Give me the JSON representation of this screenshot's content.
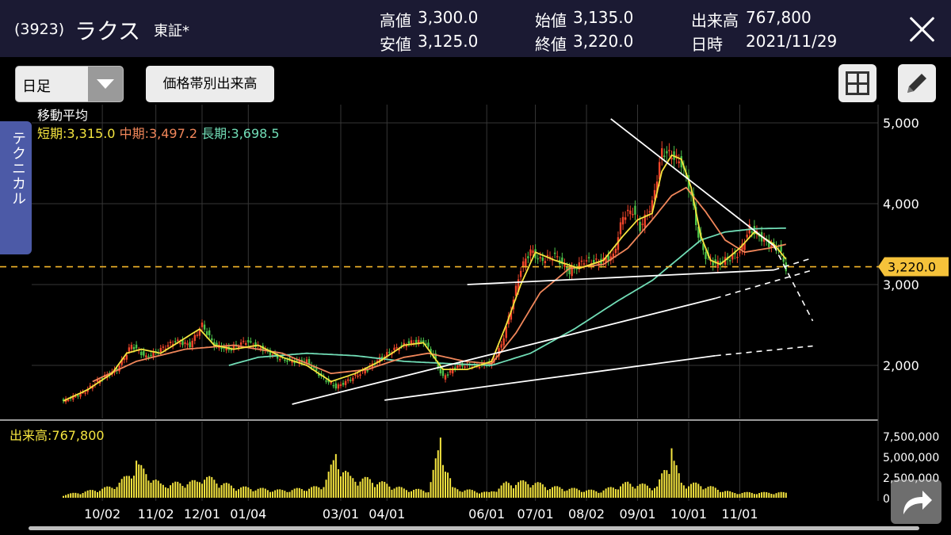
{
  "header": {
    "code": "(3923)",
    "name": "ラクス",
    "market": "東証*",
    "stats": [
      {
        "label": "高値",
        "value": "3,300.0"
      },
      {
        "label": "安値",
        "value": "3,125.0"
      },
      {
        "label": "始値",
        "value": "3,135.0"
      },
      {
        "label": "終値",
        "value": "3,220.0"
      },
      {
        "label": "出来高",
        "value": "767,800"
      },
      {
        "label": "日時",
        "value": "2021/11/29"
      }
    ]
  },
  "toolbar": {
    "period": "日足",
    "volume_by_price": "価格帯別出来高"
  },
  "side_tab": "テクニカル",
  "moving_average": {
    "title": "移動平均",
    "short": "短期:3,315.0",
    "mid": "中期:3,497.2",
    "long": "長期:3,698.5"
  },
  "volume_label": "出来高:767,800",
  "colors": {
    "header_bg": "#1b1a33",
    "candle_up": "#f0452a",
    "candle_down": "#4cc24a",
    "ma_short": "#f5e53f",
    "ma_mid": "#f0865a",
    "ma_long": "#71ddb6",
    "price_line": "#f5b72b",
    "volume": "#f5e53f",
    "trendline": "#ffffff"
  },
  "icons": {
    "close": "close-icon",
    "period_dropdown": "chevron-down-icon",
    "layout": "grid-icon",
    "draw": "pencil-icon",
    "share": "share-icon"
  },
  "chart_data": {
    "type": "candlestick",
    "current_price_label": "3,220.0",
    "current_price": 3220,
    "y_ticks": [
      5000,
      4000,
      3000,
      2000
    ],
    "y_tick_labels": [
      "5,000",
      "4,000",
      "3,000",
      "2,000"
    ],
    "ylim": [
      1500,
      5100
    ],
    "x_tick_labels": [
      "10/02",
      "11/02",
      "12/01",
      "01/04",
      "03/01",
      "04/01",
      "06/01",
      "07/01",
      "08/02",
      "09/01",
      "10/01",
      "11/01"
    ],
    "x_tick_index": [
      16,
      38,
      57,
      76,
      114,
      133,
      174,
      194,
      215,
      236,
      257,
      278
    ],
    "volume_ticks": [
      7500000,
      5000000,
      2500000,
      0
    ],
    "volume_tick_labels": [
      "7,500,000",
      "5,000,000",
      "2,500,000",
      "0"
    ],
    "volume_max": 8000000,
    "close_anchors": [
      [
        0,
        1560
      ],
      [
        8,
        1660
      ],
      [
        16,
        1850
      ],
      [
        22,
        1950
      ],
      [
        28,
        2250
      ],
      [
        34,
        2100
      ],
      [
        40,
        2200
      ],
      [
        46,
        2300
      ],
      [
        52,
        2250
      ],
      [
        57,
        2500
      ],
      [
        62,
        2250
      ],
      [
        68,
        2200
      ],
      [
        75,
        2300
      ],
      [
        82,
        2200
      ],
      [
        88,
        2100
      ],
      [
        94,
        2050
      ],
      [
        100,
        2050
      ],
      [
        106,
        1860
      ],
      [
        112,
        1730
      ],
      [
        118,
        1830
      ],
      [
        124,
        1940
      ],
      [
        130,
        2080
      ],
      [
        136,
        2200
      ],
      [
        142,
        2280
      ],
      [
        148,
        2300
      ],
      [
        152,
        2120
      ],
      [
        156,
        1850
      ],
      [
        162,
        2000
      ],
      [
        170,
        2000
      ],
      [
        176,
        2030
      ],
      [
        180,
        2250
      ],
      [
        184,
        2700
      ],
      [
        188,
        3200
      ],
      [
        192,
        3420
      ],
      [
        196,
        3300
      ],
      [
        202,
        3360
      ],
      [
        208,
        3150
      ],
      [
        214,
        3300
      ],
      [
        220,
        3280
      ],
      [
        226,
        3350
      ],
      [
        230,
        3850
      ],
      [
        234,
        3920
      ],
      [
        237,
        3700
      ],
      [
        242,
        4000
      ],
      [
        246,
        4650
      ],
      [
        250,
        4600
      ],
      [
        254,
        4500
      ],
      [
        258,
        4100
      ],
      [
        261,
        3600
      ],
      [
        264,
        3350
      ],
      [
        268,
        3250
      ],
      [
        272,
        3300
      ],
      [
        278,
        3400
      ],
      [
        282,
        3700
      ],
      [
        286,
        3600
      ],
      [
        290,
        3500
      ],
      [
        294,
        3450
      ],
      [
        297,
        3200
      ]
    ],
    "ma_short_anchors": [
      [
        0,
        1560
      ],
      [
        10,
        1700
      ],
      [
        20,
        1900
      ],
      [
        26,
        2150
      ],
      [
        32,
        2200
      ],
      [
        40,
        2150
      ],
      [
        48,
        2300
      ],
      [
        56,
        2450
      ],
      [
        62,
        2250
      ],
      [
        70,
        2200
      ],
      [
        80,
        2250
      ],
      [
        90,
        2100
      ],
      [
        100,
        2000
      ],
      [
        110,
        1800
      ],
      [
        120,
        1900
      ],
      [
        130,
        2050
      ],
      [
        140,
        2250
      ],
      [
        148,
        2280
      ],
      [
        156,
        1950
      ],
      [
        166,
        1950
      ],
      [
        176,
        2050
      ],
      [
        182,
        2500
      ],
      [
        188,
        3000
      ],
      [
        194,
        3400
      ],
      [
        202,
        3300
      ],
      [
        212,
        3200
      ],
      [
        222,
        3300
      ],
      [
        230,
        3600
      ],
      [
        236,
        3800
      ],
      [
        242,
        3880
      ],
      [
        246,
        4400
      ],
      [
        250,
        4600
      ],
      [
        254,
        4550
      ],
      [
        258,
        4200
      ],
      [
        262,
        3600
      ],
      [
        266,
        3300
      ],
      [
        270,
        3250
      ],
      [
        278,
        3450
      ],
      [
        284,
        3650
      ],
      [
        292,
        3500
      ],
      [
        297,
        3315
      ]
    ],
    "ma_mid_anchors": [
      [
        12,
        1800
      ],
      [
        30,
        2050
      ],
      [
        50,
        2200
      ],
      [
        70,
        2250
      ],
      [
        90,
        2150
      ],
      [
        110,
        1900
      ],
      [
        125,
        1950
      ],
      [
        140,
        2100
      ],
      [
        150,
        2150
      ],
      [
        165,
        2050
      ],
      [
        176,
        2020
      ],
      [
        186,
        2400
      ],
      [
        196,
        2900
      ],
      [
        208,
        3200
      ],
      [
        222,
        3250
      ],
      [
        232,
        3450
      ],
      [
        242,
        3800
      ],
      [
        250,
        4100
      ],
      [
        256,
        4200
      ],
      [
        264,
        3900
      ],
      [
        272,
        3550
      ],
      [
        280,
        3400
      ],
      [
        290,
        3450
      ],
      [
        297,
        3497
      ]
    ],
    "ma_long_anchors": [
      [
        68,
        2000
      ],
      [
        80,
        2100
      ],
      [
        100,
        2150
      ],
      [
        120,
        2120
      ],
      [
        140,
        2050
      ],
      [
        160,
        2020
      ],
      [
        176,
        2000
      ],
      [
        192,
        2150
      ],
      [
        210,
        2450
      ],
      [
        228,
        2800
      ],
      [
        242,
        3050
      ],
      [
        252,
        3300
      ],
      [
        262,
        3550
      ],
      [
        272,
        3650
      ],
      [
        284,
        3690
      ],
      [
        297,
        3698
      ]
    ],
    "volume_anchors": [
      [
        0,
        400000
      ],
      [
        10,
        900000
      ],
      [
        20,
        1500000
      ],
      [
        26,
        2800000
      ],
      [
        30,
        4500000
      ],
      [
        40,
        1800000
      ],
      [
        55,
        2200000
      ],
      [
        57,
        3000000
      ],
      [
        70,
        1500000
      ],
      [
        90,
        1000000
      ],
      [
        106,
        1500000
      ],
      [
        112,
        5300000
      ],
      [
        118,
        2700000
      ],
      [
        126,
        2500000
      ],
      [
        140,
        1200000
      ],
      [
        150,
        1000000
      ],
      [
        155,
        7300000
      ],
      [
        160,
        1300000
      ],
      [
        175,
        700000
      ],
      [
        182,
        2000000
      ],
      [
        192,
        2200000
      ],
      [
        200,
        1500000
      ],
      [
        220,
        900000
      ],
      [
        232,
        2000000
      ],
      [
        244,
        1500000
      ],
      [
        250,
        6000000
      ],
      [
        254,
        2000000
      ],
      [
        262,
        1800000
      ],
      [
        275,
        700000
      ],
      [
        297,
        700000
      ]
    ],
    "trendlines": [
      {
        "from": [
          225,
          5050
        ],
        "to": [
          292,
          3480
        ],
        "ext_to": [
          308,
          2550
        ]
      },
      {
        "from": [
          166,
          3000
        ],
        "to": [
          292,
          3180
        ],
        "ext_to": [
          308,
          3330
        ]
      },
      {
        "from": [
          94,
          1520
        ],
        "to": [
          268,
          2830
        ],
        "ext_to": [
          308,
          3180
        ]
      },
      {
        "from": [
          132,
          1570
        ],
        "to": [
          268,
          2120
        ],
        "ext_to": [
          308,
          2240
        ]
      }
    ]
  }
}
